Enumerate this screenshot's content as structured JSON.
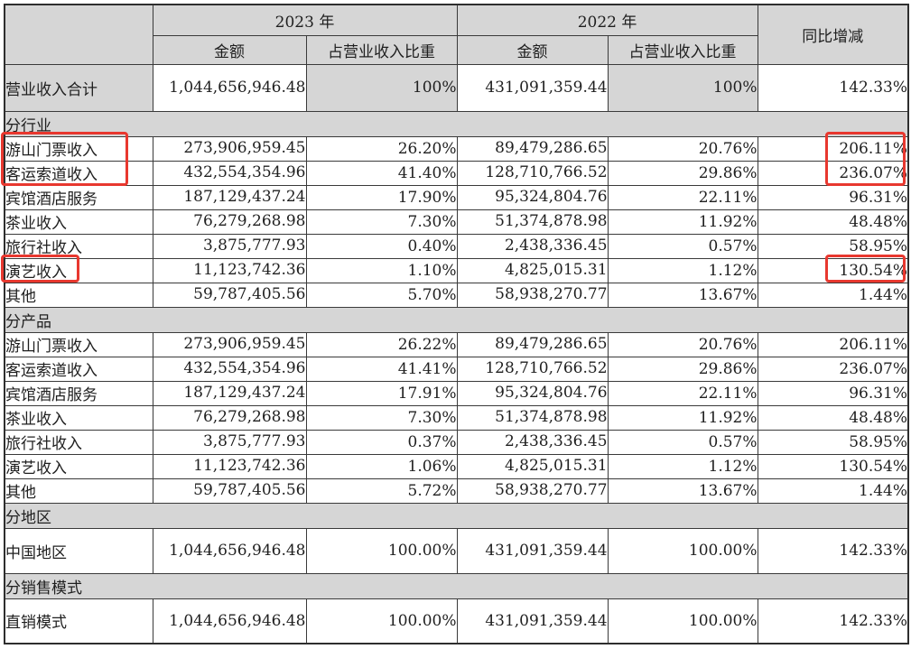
{
  "table": {
    "header": {
      "year_2023": "2023 年",
      "year_2022": "2022 年",
      "amount_2023": "金额",
      "proportion_2023": "占营业收入比重",
      "amount_2022": "金额",
      "proportion_2022": "占营业收入比重",
      "yoy": "同比增减"
    },
    "rows": [
      {
        "type": "total",
        "label": "营业收入合计",
        "a23": "1,044,656,946.48",
        "p23": "100%",
        "a22": "431,091,359.44",
        "p22": "100%",
        "yoy": "142.33%"
      },
      {
        "type": "section",
        "label": "分行业"
      },
      {
        "type": "data",
        "label": "游山门票收入",
        "a23": "273,906,959.45",
        "p23": "26.20%",
        "a22": "89,479,286.65",
        "p22": "20.76%",
        "yoy": "206.11%"
      },
      {
        "type": "data",
        "label": "客运索道收入",
        "a23": "432,554,354.96",
        "p23": "41.40%",
        "a22": "128,710,766.52",
        "p22": "29.86%",
        "yoy": "236.07%"
      },
      {
        "type": "data",
        "label": "宾馆酒店服务",
        "a23": "187,129,437.24",
        "p23": "17.90%",
        "a22": "95,324,804.76",
        "p22": "22.11%",
        "yoy": "96.31%"
      },
      {
        "type": "data",
        "label": "茶业收入",
        "a23": "76,279,268.98",
        "p23": "7.30%",
        "a22": "51,374,878.98",
        "p22": "11.92%",
        "yoy": "48.48%"
      },
      {
        "type": "data",
        "label": "旅行社收入",
        "a23": "3,875,777.93",
        "p23": "0.40%",
        "a22": "2,438,336.45",
        "p22": "0.57%",
        "yoy": "58.95%"
      },
      {
        "type": "data",
        "label": "演艺收入",
        "a23": "11,123,742.36",
        "p23": "1.10%",
        "a22": "4,825,015.31",
        "p22": "1.12%",
        "yoy": "130.54%"
      },
      {
        "type": "data",
        "label": "其他",
        "a23": "59,787,405.56",
        "p23": "5.70%",
        "a22": "58,938,270.77",
        "p22": "13.67%",
        "yoy": "1.44%"
      },
      {
        "type": "section",
        "label": "分产品"
      },
      {
        "type": "data",
        "label": "游山门票收入",
        "a23": "273,906,959.45",
        "p23": "26.22%",
        "a22": "89,479,286.65",
        "p22": "20.76%",
        "yoy": "206.11%"
      },
      {
        "type": "data",
        "label": "客运索道收入",
        "a23": "432,554,354.96",
        "p23": "41.41%",
        "a22": "128,710,766.52",
        "p22": "29.86%",
        "yoy": "236.07%"
      },
      {
        "type": "data",
        "label": "宾馆酒店服务",
        "a23": "187,129,437.24",
        "p23": "17.91%",
        "a22": "95,324,804.76",
        "p22": "22.11%",
        "yoy": "96.31%"
      },
      {
        "type": "data",
        "label": "茶业收入",
        "a23": "76,279,268.98",
        "p23": "7.30%",
        "a22": "51,374,878.98",
        "p22": "11.92%",
        "yoy": "48.48%"
      },
      {
        "type": "data",
        "label": "旅行社收入",
        "a23": "3,875,777.93",
        "p23": "0.37%",
        "a22": "2,438,336.45",
        "p22": "0.57%",
        "yoy": "58.95%"
      },
      {
        "type": "data",
        "label": "演艺收入",
        "a23": "11,123,742.36",
        "p23": "1.06%",
        "a22": "4,825,015.31",
        "p22": "1.12%",
        "yoy": "130.54%"
      },
      {
        "type": "data",
        "label": "其他",
        "a23": "59,787,405.56",
        "p23": "5.72%",
        "a22": "58,938,270.77",
        "p22": "13.67%",
        "yoy": "1.44%"
      },
      {
        "type": "section",
        "label": "分地区"
      },
      {
        "type": "tall",
        "label": "中国地区",
        "a23": "1,044,656,946.48",
        "p23": "100.00%",
        "a22": "431,091,359.44",
        "p22": "100.00%",
        "yoy": "142.33%"
      },
      {
        "type": "section",
        "label": "分销售模式"
      },
      {
        "type": "tall",
        "label": "直销模式",
        "a23": "1,044,656,946.48",
        "p23": "100.00%",
        "a22": "431,091,359.44",
        "p22": "100.00%",
        "yoy": "142.33%"
      }
    ]
  },
  "highlights": [
    {
      "id": "industry-ticket-cableway-labels",
      "target": "分行业: 游山门票收入 + 客运索道收入 labels"
    },
    {
      "id": "industry-ticket-cableway-yoy",
      "target": "同比增减: 206.11% + 236.07%"
    },
    {
      "id": "industry-performance-label",
      "target": "分行业: 演艺收入 label"
    },
    {
      "id": "industry-performance-yoy",
      "target": "同比增减: 130.54%"
    }
  ],
  "colors": {
    "header_gray": "#d6d6d6",
    "highlight_red": "#e8382f",
    "grid_border": "#3a3a3a",
    "text": "#1f1f1f"
  }
}
